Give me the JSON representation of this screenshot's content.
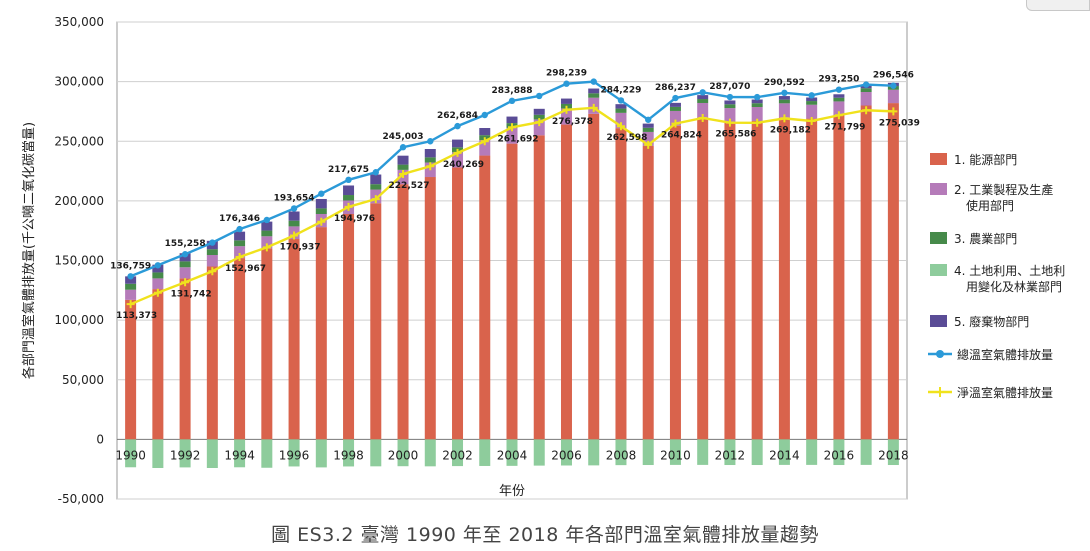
{
  "caption": "圖 ES3.2 臺灣 1990 年至 2018 年各部門溫室氣體排放量趨勢",
  "chart_data": {
    "type": "bar",
    "stacked": true,
    "xlabel": "年份",
    "ylabel": "各部門溫室氣體排放量(千公噸二氧化碳當量)",
    "ylim": [
      -50000,
      350000
    ],
    "yticks": [
      -50000,
      0,
      50000,
      100000,
      150000,
      200000,
      250000,
      300000,
      350000
    ],
    "ytick_labels": [
      "-50,000",
      "0",
      "50,000",
      "100,000",
      "150,000",
      "200,000",
      "250,000",
      "300,000",
      "350,000"
    ],
    "grid": true,
    "legend_position": "right",
    "categories": [
      1990,
      1991,
      1992,
      1993,
      1994,
      1995,
      1996,
      1997,
      1998,
      1999,
      2000,
      2001,
      2002,
      2003,
      2004,
      2005,
      2006,
      2007,
      2008,
      2009,
      2010,
      2011,
      2012,
      2013,
      2014,
      2015,
      2016,
      2017,
      2018
    ],
    "x_tick_labels": [
      "1990",
      "",
      "1992",
      "",
      "1994",
      "",
      "1996",
      "",
      "1998",
      "",
      "2000",
      "",
      "2002",
      "",
      "2004",
      "",
      "2006",
      "",
      "2008",
      "",
      "2010",
      "",
      "2012",
      "",
      "2014",
      "",
      "2016",
      "",
      "2018"
    ],
    "bar_series": [
      {
        "name": "1. 能源部門",
        "color": "#d9634c",
        "values": [
          117000,
          126000,
          135000,
          145000,
          152000,
          160000,
          168000,
          178000,
          189000,
          198000,
          214000,
          220000,
          228000,
          238000,
          248000,
          255000,
          264000,
          273000,
          261000,
          246000,
          263000,
          270000,
          266000,
          267000,
          270000,
          269000,
          272000,
          280000,
          282000
        ]
      },
      {
        "name": "2. 工業製程及生產\n使用部門",
        "color": "#b57bb9",
        "values": [
          8500,
          9000,
          9300,
          9600,
          10000,
          10300,
          10600,
          11000,
          11300,
          11500,
          12000,
          12200,
          12700,
          13000,
          13200,
          13300,
          13500,
          13500,
          12800,
          11800,
          12400,
          12100,
          11800,
          11700,
          11800,
          11600,
          11400,
          11300,
          11200
        ]
      },
      {
        "name": "3. 農業部門",
        "color": "#468a4a",
        "values": [
          5000,
          5000,
          5000,
          4900,
          4900,
          4800,
          4800,
          4700,
          4600,
          4500,
          4400,
          4300,
          4200,
          4100,
          4000,
          3900,
          3800,
          3700,
          3600,
          3500,
          3400,
          3300,
          3200,
          3200,
          3100,
          3100,
          3100,
          3100,
          3100
        ]
      },
      {
        "name": "4. 土地利用、土地利\n用變化及林業部門",
        "color": "#8ecc9c",
        "values": [
          -23386,
          -24000,
          -23500,
          -24000,
          -23400,
          -23800,
          -22700,
          -23500,
          -22700,
          -22600,
          -22500,
          -22600,
          -22400,
          -22300,
          -22200,
          -22000,
          -21900,
          -21800,
          -21600,
          -21500,
          -21400,
          -21400,
          -21500,
          -21500,
          -21400,
          -21400,
          -21500,
          -21400,
          -21500
        ]
      },
      {
        "name": "5. 廢棄物部門",
        "color": "#5a4c96",
        "values": [
          6200,
          6500,
          6800,
          7000,
          7300,
          7500,
          7700,
          7900,
          8000,
          8100,
          7500,
          7000,
          6500,
          6000,
          5500,
          5000,
          4500,
          4000,
          3700,
          3500,
          3400,
          3300,
          3200,
          3100,
          3000,
          3000,
          2900,
          2800,
          2700
        ]
      }
    ],
    "line_series": [
      {
        "name": "總溫室氣體排放量",
        "color": "#2b9ad8",
        "marker": "circle",
        "values": [
          136759,
          146000,
          155258,
          165000,
          176346,
          184000,
          193654,
          206000,
          217675,
          224000,
          245003,
          250000,
          262684,
          272000,
          283888,
          288000,
          298239,
          300000,
          284229,
          268000,
          286237,
          291000,
          287070,
          287000,
          290592,
          288500,
          293250,
          297500,
          296546
        ]
      },
      {
        "name": "淨溫室氣體排放量",
        "color": "#f0e21c",
        "marker": "plus",
        "values": [
          113373,
          123000,
          131742,
          141000,
          152967,
          161000,
          170937,
          182500,
          194976,
          201500,
          222527,
          229000,
          240269,
          250000,
          261692,
          266000,
          276378,
          278000,
          262598,
          247000,
          264824,
          269500,
          265586,
          265500,
          269182,
          267000,
          271799,
          276000,
          275039
        ]
      }
    ],
    "total_labels": [
      {
        "year": 1990,
        "text": "136,759"
      },
      {
        "year": 1992,
        "text": "155,258"
      },
      {
        "year": 1994,
        "text": "176,346"
      },
      {
        "year": 1996,
        "text": "193,654"
      },
      {
        "year": 1998,
        "text": "217,675"
      },
      {
        "year": 2000,
        "text": "245,003"
      },
      {
        "year": 2002,
        "text": "262,684"
      },
      {
        "year": 2004,
        "text": "283,888"
      },
      {
        "year": 2006,
        "text": "298,239"
      },
      {
        "year": 2008,
        "text": "284,229"
      },
      {
        "year": 2010,
        "text": "286,237"
      },
      {
        "year": 2012,
        "text": "287,070"
      },
      {
        "year": 2014,
        "text": "290,592"
      },
      {
        "year": 2016,
        "text": "293,250"
      },
      {
        "year": 2018,
        "text": "296,546"
      }
    ],
    "net_labels": [
      {
        "year": 1990,
        "text": "113,373"
      },
      {
        "year": 1992,
        "text": "131,742"
      },
      {
        "year": 1994,
        "text": "152,967"
      },
      {
        "year": 1996,
        "text": "170,937"
      },
      {
        "year": 1998,
        "text": "194,976"
      },
      {
        "year": 2000,
        "text": "222,527"
      },
      {
        "year": 2002,
        "text": "240,269"
      },
      {
        "year": 2004,
        "text": "261,692"
      },
      {
        "year": 2006,
        "text": "276,378"
      },
      {
        "year": 2008,
        "text": "262,598"
      },
      {
        "year": 2010,
        "text": "264,824"
      },
      {
        "year": 2012,
        "text": "265,586"
      },
      {
        "year": 2014,
        "text": "269,182"
      },
      {
        "year": 2016,
        "text": "271,799"
      },
      {
        "year": 2018,
        "text": "275,039"
      }
    ]
  }
}
